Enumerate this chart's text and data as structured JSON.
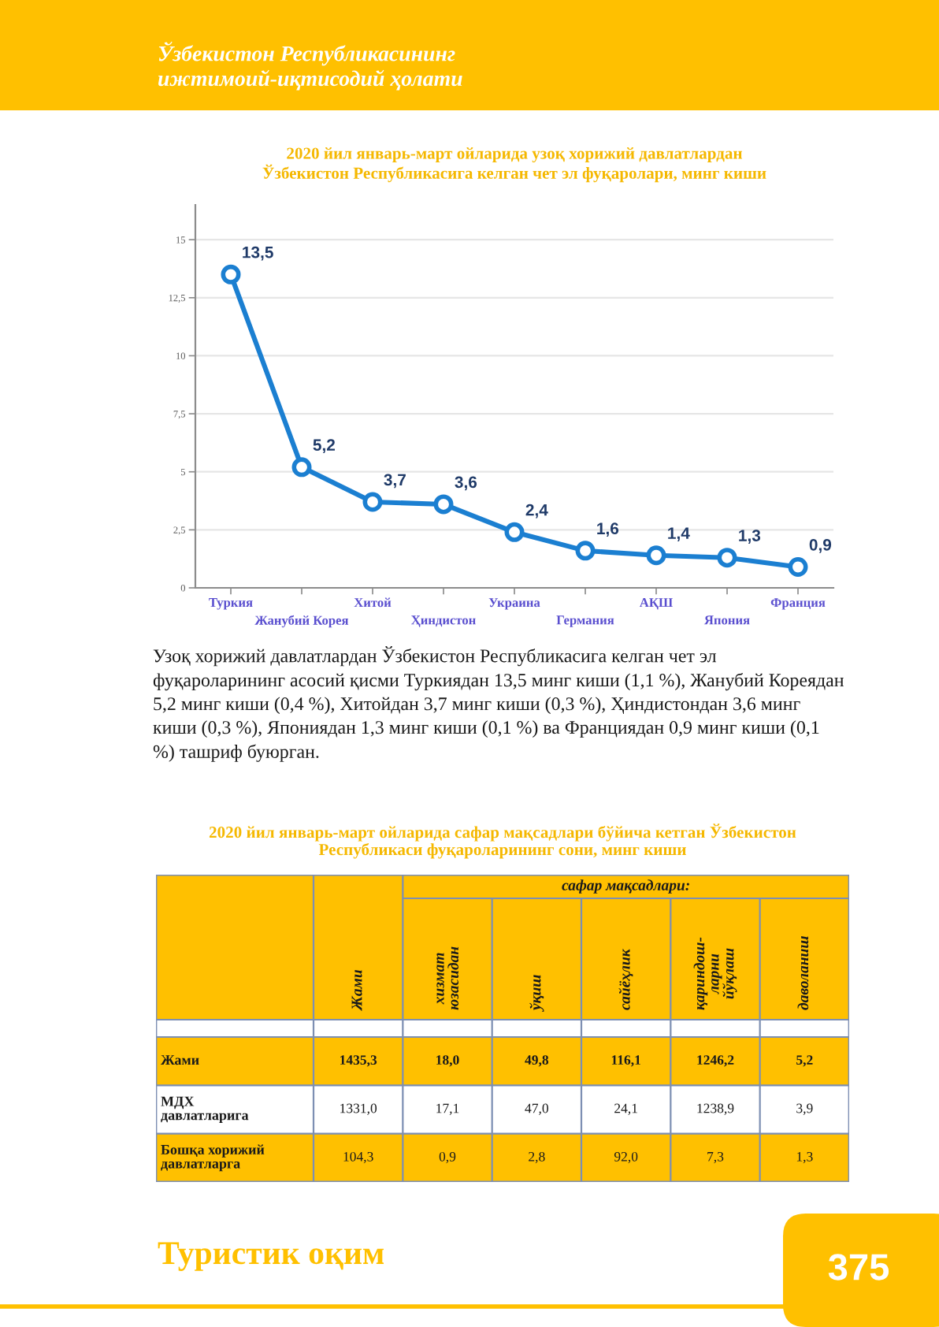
{
  "chart_data": [
    {
      "type": "line",
      "title": "2020 йил январь-март ойларида узоқ хорижий давлатлардан\nЎзбекистон Республикасига келган чет эл фуқаролари, минг киши",
      "categories": [
        "Туркия",
        "Жанубий Корея",
        "Хитой",
        "Ҳиндистон",
        "Украина",
        "Германия",
        "АҚШ",
        "Япония",
        "Франция"
      ],
      "values": [
        13.5,
        5.2,
        3.7,
        3.6,
        2.4,
        1.6,
        1.4,
        1.3,
        0.9
      ],
      "value_labels": [
        "13,5",
        "5,2",
        "3,7",
        "3,6",
        "2,4",
        "1,6",
        "1,4",
        "1,3",
        "0,9"
      ],
      "color": "#1b7fd1",
      "marker": "circle",
      "grid": "y",
      "ylim": [
        0,
        16.5
      ],
      "yticks": [
        0,
        {
          "value": 2.5,
          "label": "2,5"
        },
        5,
        {
          "value": 7.5,
          "label": "7,5"
        },
        10,
        {
          "value": 12.5,
          "label": "12,5"
        },
        15
      ],
      "annotations": [
        "Ўзбекистон Республикасининг",
        "ижтимоий-иқтисодий ҳолати",
        "Узоқ хорижий давлатлардан Ўзбекистон Республикасига келган чет эл фуқароларининг асосий қисми Туркиядан 13,5 минг киши (1,1 %), Жанубий Кореядан 5,2 минг киши (0,4 %), Хитойдан 3,7 минг киши (0,3 %), Ҳиндистондан 3,6 минг киши (0,3 %), Япониядан 1,3 минг киши (0,1 %) ва Франциядан 0,9 минг киши (0,1 %) ташриф буюрган."
      ]
    },
    {
      "type": "other",
      "title": "2020 йил январь-март ойларида сафар мақсадлари бўйича кетган Ўзбекистон\nРеспубликаси фуқароларининг сони, минг киши",
      "categories": [
        "Жами",
        "хизмат\nюзасидан",
        "ўқиш",
        "сайёҳлик",
        "қариндош-\nларни\nйўқлаш",
        "даволаниш"
      ],
      "y_categories": [
        "Жами",
        "МДХ\nдавлатларига",
        "Бошқа хорижий\nдавлатларга"
      ],
      "cell_labels": [
        [
          "1435,3",
          "18,0",
          "49,8",
          "116,1",
          "1246,2",
          "5,2"
        ],
        [
          "1331,0",
          "17,1",
          "47,0",
          "24,1",
          "1238,9",
          "3,9"
        ],
        [
          "104,3",
          "0,9",
          "2,8",
          "92,0",
          "7,3",
          "1,3"
        ]
      ],
      "colors": [
        [
          "#ffc000",
          "#ffc000",
          "#ffc000",
          "#ffc000",
          "#ffc000",
          "#ffc000"
        ],
        [
          "#ffffff",
          "#ffffff",
          "#ffffff",
          "#ffffff",
          "#ffffff",
          "#ffffff"
        ],
        [
          "#ffc000",
          "#ffc000",
          "#ffc000",
          "#ffc000",
          "#ffc000",
          "#ffc000"
        ]
      ],
      "annotations": [
        "сафар мақсадлари:",
        "Туристик оқим",
        "375"
      ]
    }
  ]
}
